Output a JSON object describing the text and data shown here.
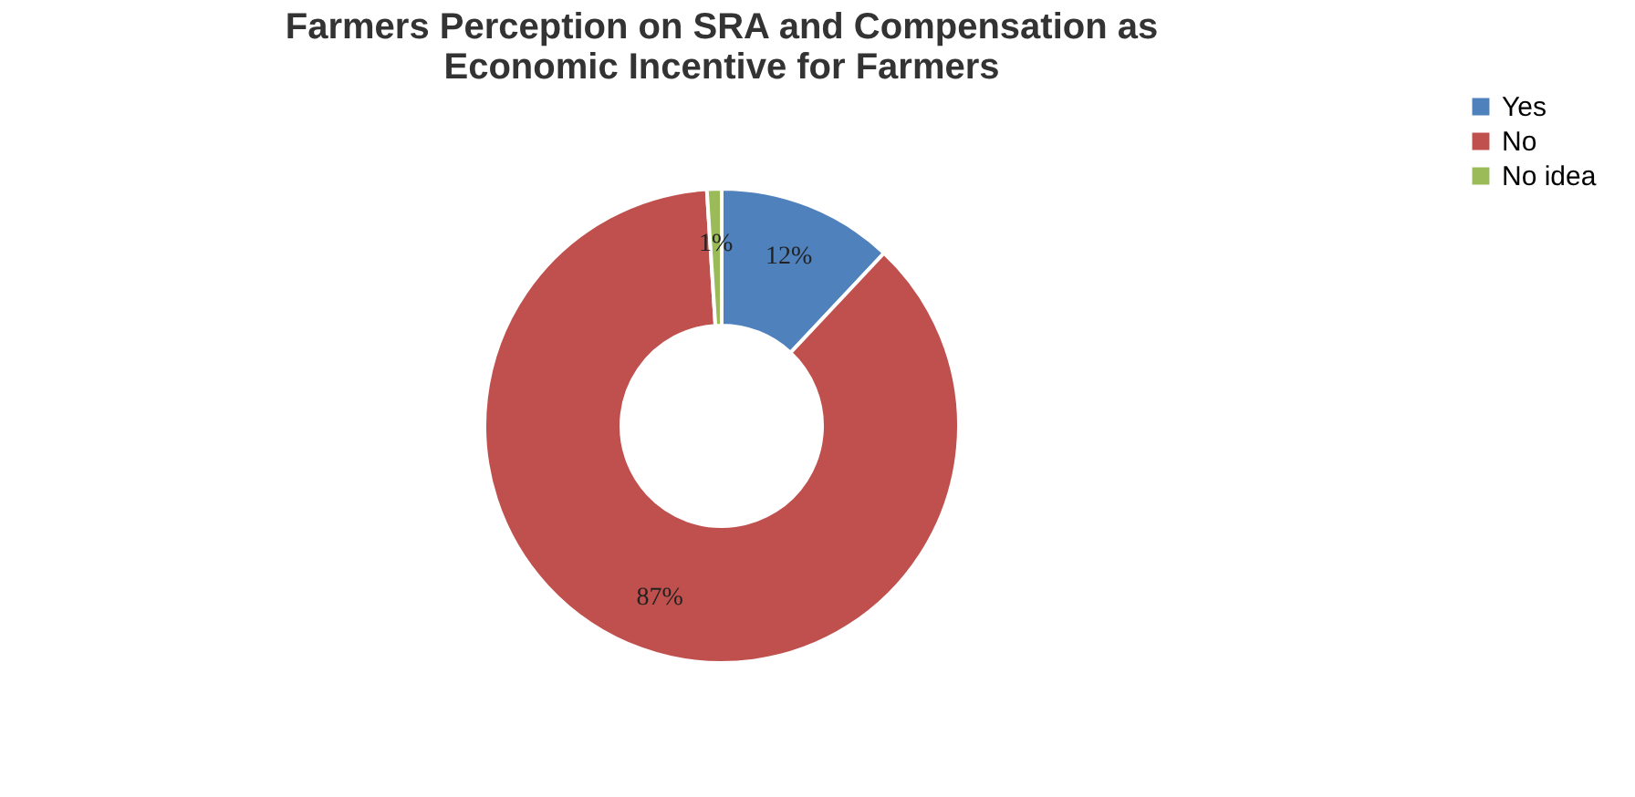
{
  "chart_data": {
    "type": "donut",
    "title": [
      "Farmers Perception on SRA and Compensation as",
      "Economic Incentive for Farmers"
    ],
    "categories": [
      "Yes",
      "No",
      "No idea"
    ],
    "values": [
      12,
      87,
      1
    ],
    "colors": [
      "#4f81bd",
      "#c0504d",
      "#9bbb59"
    ],
    "value_labels": [
      "12%",
      "87%",
      "1%"
    ],
    "legend": "right"
  }
}
